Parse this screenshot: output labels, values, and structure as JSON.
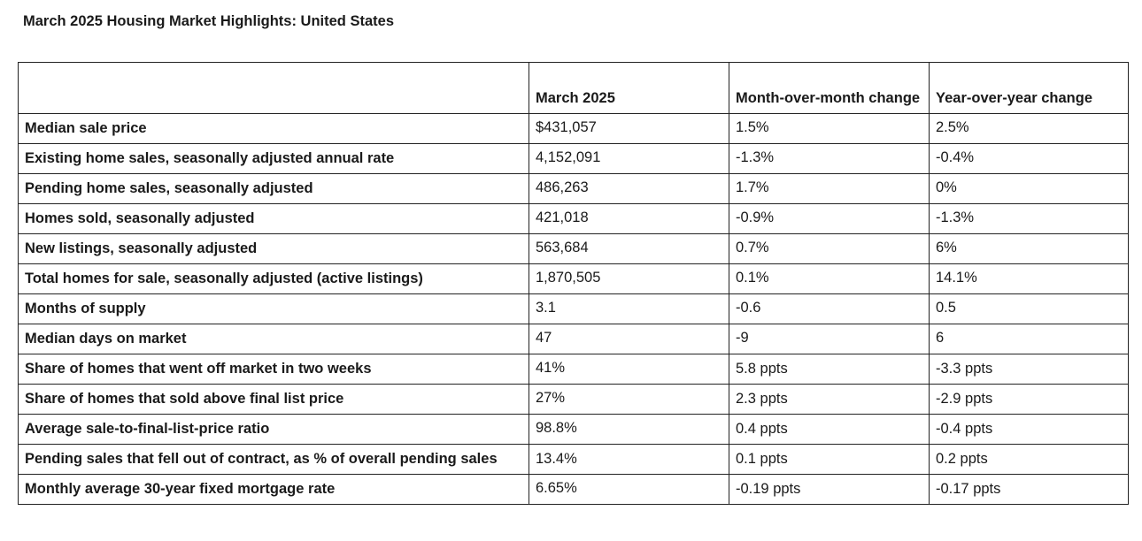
{
  "title": "March 2025 Housing Market Highlights: United States",
  "table": {
    "headers": [
      "",
      "March 2025",
      "Month-over-month change",
      "Year-over-year change"
    ],
    "rows": [
      {
        "metric": "Median sale price",
        "march": "$431,057",
        "mom": "1.5%",
        "yoy": "2.5%"
      },
      {
        "metric": "Existing home sales, seasonally adjusted annual rate",
        "march": "4,152,091",
        "mom": "-1.3%",
        "yoy": "-0.4%"
      },
      {
        "metric": "Pending home sales, seasonally adjusted",
        "march": "486,263",
        "mom": "1.7%",
        "yoy": "0%"
      },
      {
        "metric": "Homes sold, seasonally adjusted",
        "march": "421,018",
        "mom": "-0.9%",
        "yoy": "-1.3%"
      },
      {
        "metric": "New listings, seasonally adjusted",
        "march": "563,684",
        "mom": "0.7%",
        "yoy": "6%"
      },
      {
        "metric": "Total homes for sale, seasonally adjusted (active listings)",
        "march": "1,870,505",
        "mom": "0.1%",
        "yoy": "14.1%"
      },
      {
        "metric": "Months of supply",
        "march": "3.1",
        "mom": "-0.6",
        "yoy": "0.5"
      },
      {
        "metric": "Median days on market",
        "march": "47",
        "mom": "-9",
        "yoy": "6"
      },
      {
        "metric": "Share of homes that went off market in two weeks",
        "march": "41%",
        "mom": "5.8 ppts",
        "yoy": "-3.3 ppts"
      },
      {
        "metric": "Share of homes that sold above final list price",
        "march": "27%",
        "mom": "2.3 ppts",
        "yoy": "-2.9 ppts"
      },
      {
        "metric": "Average sale-to-final-list-price ratio",
        "march": "98.8%",
        "mom": "0.4 ppts",
        "yoy": "-0.4 ppts"
      },
      {
        "metric": "Pending sales that fell out of contract, as % of overall pending sales",
        "march": "13.4%",
        "mom": "0.1 ppts",
        "yoy": "0.2 ppts"
      },
      {
        "metric": "Monthly average 30-year fixed mortgage rate",
        "march": "6.65%",
        "mom": "-0.19 ppts",
        "yoy": "-0.17 ppts"
      }
    ]
  }
}
